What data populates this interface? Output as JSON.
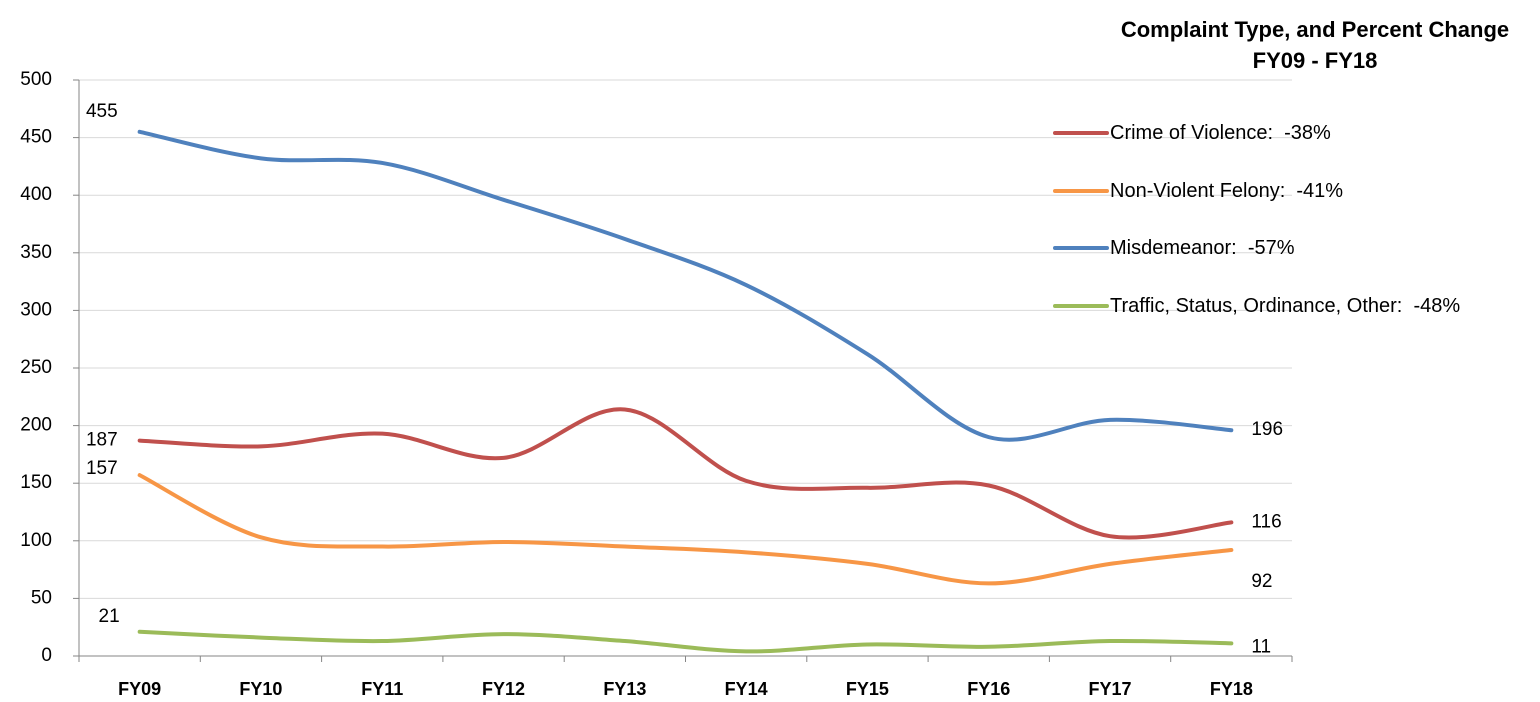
{
  "chart_data": {
    "type": "line",
    "title": "Complaint Type, and Percent Change FY09 - FY18",
    "categories": [
      "FY09",
      "FY10",
      "FY11",
      "FY12",
      "FY13",
      "FY14",
      "FY15",
      "FY16",
      "FY17",
      "FY18"
    ],
    "series": [
      {
        "name": "Crime of Violence:  -38%",
        "color": "#c0504d",
        "values": [
          187,
          182,
          193,
          172,
          214,
          152,
          146,
          148,
          104,
          116
        ]
      },
      {
        "name": "Non-Violent Felony:  -41%",
        "color": "#f79646",
        "values": [
          157,
          103,
          95,
          99,
          95,
          90,
          80,
          63,
          80,
          92
        ]
      },
      {
        "name": "Misdemeanor:  -57%",
        "color": "#4f81bd",
        "values": [
          455,
          432,
          428,
          396,
          362,
          322,
          262,
          190,
          205,
          196
        ]
      },
      {
        "name": "Traffic, Status, Ordinance, Other:  -48%",
        "color": "#9bbb59",
        "values": [
          21,
          16,
          13,
          19,
          13,
          4,
          10,
          8,
          13,
          11
        ]
      }
    ],
    "ylim": [
      0,
      500
    ],
    "yticks": [
      0,
      50,
      100,
      150,
      200,
      250,
      300,
      350,
      400,
      450,
      500
    ],
    "grid": true,
    "legend": "right"
  }
}
